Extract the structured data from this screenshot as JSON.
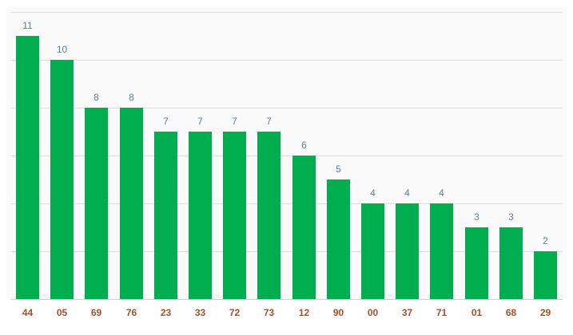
{
  "chart_data": {
    "type": "bar",
    "categories": [
      "44",
      "05",
      "69",
      "76",
      "23",
      "33",
      "72",
      "73",
      "12",
      "90",
      "00",
      "37",
      "71",
      "01",
      "68",
      "29"
    ],
    "values": [
      11,
      10,
      8,
      8,
      7,
      7,
      7,
      7,
      6,
      5,
      4,
      4,
      4,
      3,
      3,
      2
    ],
    "title": "",
    "xlabel": "",
    "ylabel": "",
    "ylim": [
      0,
      12
    ],
    "grid": true,
    "legend": "none",
    "data_labels": true,
    "colors": {
      "bar": "#00ad4f",
      "value_label": "#5b7f95",
      "tick_label": "#a0522d",
      "gridline": "#dcdcdc",
      "plot_background": "#fafafa"
    }
  }
}
